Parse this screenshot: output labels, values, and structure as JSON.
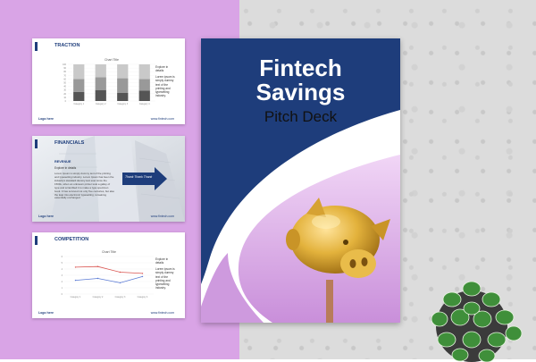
{
  "slides": {
    "traction": {
      "title": "TRACTION",
      "chart_title": "Chart Title",
      "side_lines": [
        "Explore in",
        "details",
        "",
        "Lorem ipsum is",
        "simply dummy",
        "text of the",
        "printing and",
        "typesetting",
        "industry."
      ],
      "logo": "Logo here",
      "site": "www.fintech.com",
      "chart_data": {
        "type": "bar",
        "categories": [
          "Category 1",
          "Category 2",
          "Category 3",
          "Category 4"
        ],
        "series": [
          {
            "values": [
              25,
              30,
              22,
              28
            ]
          },
          {
            "values": [
              35,
              35,
              40,
              32
            ]
          },
          {
            "values": [
              40,
              35,
              38,
              40
            ]
          }
        ],
        "ylim": [
          0,
          100
        ]
      }
    },
    "financials": {
      "title": "FINANCIALS",
      "revenue_label": "REVENUE",
      "explore": "Explore in details",
      "body": "Lorem Ipsum is simply dummy text of the printing and typesetting industry. Lorem Ipsum has been the industry's standard dummy text ever since the 1500s, when an unknown printer took a galley of type and scrambled it to make a type specimen book. It has survived not only five centuries, but also the leap into electronic typesetting, remaining essentially unchanged.",
      "arrow_text": "Thank Thank Thank",
      "logo": "Logo here",
      "site": "www.fintech.com"
    },
    "competition": {
      "title": "COMPETITION",
      "chart_title": "Chart Title",
      "side_lines": [
        "Explore in",
        "details",
        "",
        "Lorem ipsum is",
        "simply dummy",
        "text of the",
        "printing and",
        "typesetting",
        "industry."
      ],
      "logo": "Logo here",
      "site": "www.fintech.com",
      "chart_data": {
        "type": "line",
        "categories": [
          "Category 1",
          "Category 2",
          "Category 3",
          "Category 4"
        ],
        "series": [
          {
            "values": [
              4.3,
              4.4,
              3.5,
              3.3
            ],
            "color": "#d9534f"
          },
          {
            "values": [
              2.2,
              2.5,
              1.8,
              2.8
            ],
            "color": "#5b7bd5"
          }
        ],
        "ylim": [
          0,
          6
        ]
      }
    }
  },
  "cover": {
    "title_line1": "Fintech",
    "title_line2": "Savings",
    "subtitle": "Pitch Deck"
  },
  "colors": {
    "navy": "#1e3d7b",
    "lilac": "#d9a4e6",
    "gold": "#d7a32a"
  }
}
